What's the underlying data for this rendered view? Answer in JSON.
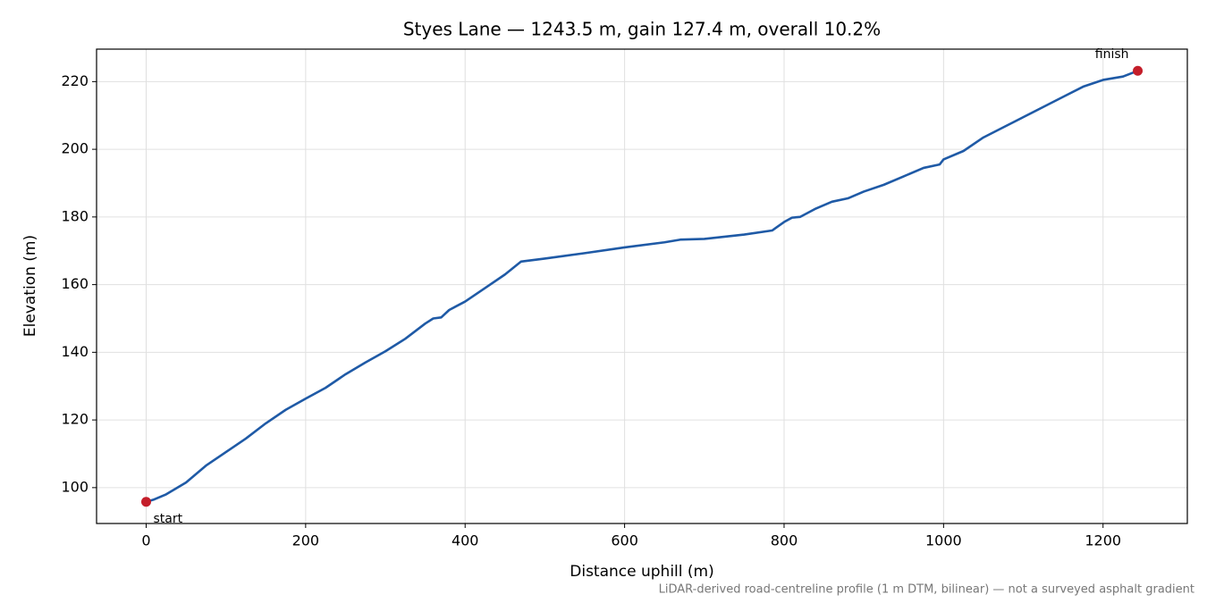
{
  "chart_data": {
    "type": "line",
    "title": "Styes Lane — 1243.5 m, gain 127.4 m, overall 10.2%",
    "xlabel": "Distance uphill (m)",
    "ylabel": "Elevation (m)",
    "note": "LiDAR-derived road-centreline profile (1 m DTM, bilinear) — not a surveyed asphalt gradient",
    "x": [
      0,
      10,
      25,
      50,
      75,
      100,
      125,
      150,
      175,
      200,
      225,
      250,
      275,
      300,
      325,
      350,
      360,
      370,
      380,
      400,
      425,
      450,
      470,
      500,
      550,
      600,
      650,
      670,
      700,
      750,
      785,
      800,
      810,
      820,
      840,
      860,
      880,
      900,
      925,
      950,
      975,
      995,
      1000,
      1025,
      1050,
      1075,
      1100,
      1125,
      1150,
      1175,
      1200,
      1225,
      1243.5
    ],
    "series": [
      {
        "color": "#1f5aa6",
        "values": [
          95.8,
          96.5,
          98,
          101.5,
          106.5,
          110.5,
          114.5,
          119,
          123,
          126.3,
          129.5,
          133.5,
          137,
          140.3,
          144,
          148.5,
          150,
          150.3,
          152.5,
          155,
          159,
          163,
          166.8,
          167.7,
          169.3,
          171,
          172.5,
          173.3,
          173.5,
          174.8,
          176,
          178.5,
          179.8,
          180,
          182.5,
          184.5,
          185.5,
          187.5,
          189.5,
          192,
          194.5,
          195.5,
          197,
          199.5,
          203.5,
          206.5,
          209.5,
          212.5,
          215.5,
          218.5,
          220.5,
          221.5,
          223.2
        ]
      }
    ],
    "annotations": [
      {
        "text": "start",
        "x": 0,
        "y": 95.8,
        "color": "#c41e2a"
      },
      {
        "text": "finish",
        "x": 1243.5,
        "y": 223.2,
        "color": "#c41e2a"
      }
    ],
    "xlim": [
      -62.2,
      1305.7
    ],
    "ylim": [
      89.4,
      229.6
    ],
    "xticks": [
      0,
      200,
      400,
      600,
      800,
      1000,
      1200
    ],
    "yticks": [
      100,
      120,
      140,
      160,
      180,
      200,
      220
    ],
    "grid": true
  }
}
